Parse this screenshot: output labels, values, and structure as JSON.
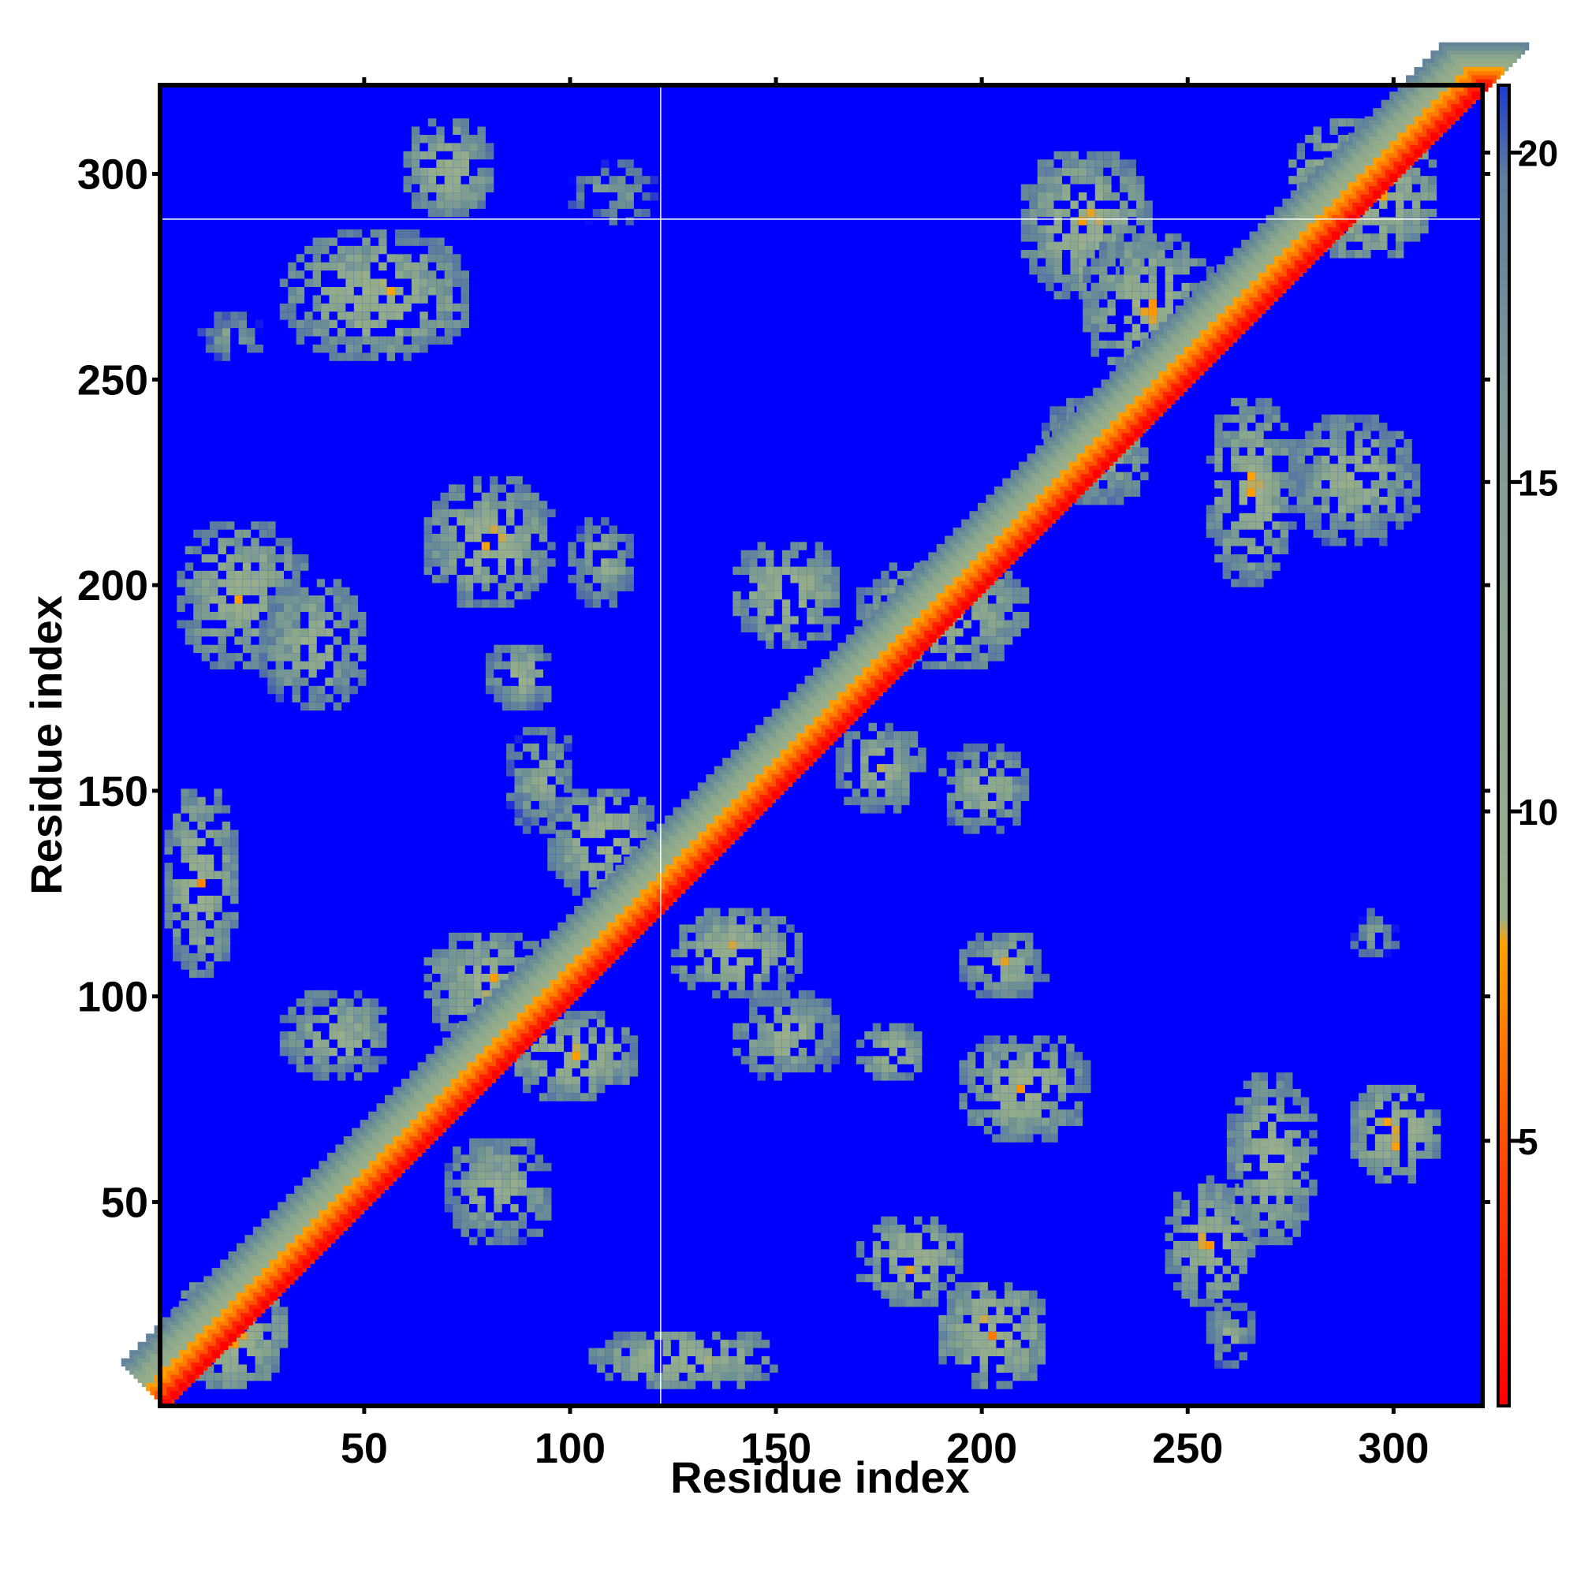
{
  "chart_data": {
    "type": "heatmap",
    "title": "",
    "xlabel": "Residue index",
    "ylabel": "Residue index",
    "xlim": [
      1,
      321
    ],
    "ylim": [
      1,
      321
    ],
    "x_ticks": [
      50,
      100,
      150,
      200,
      250,
      300
    ],
    "y_ticks": [
      50,
      100,
      150,
      200,
      250,
      300
    ],
    "colorbar": {
      "ticks": [
        5,
        10,
        15,
        20
      ],
      "range": [
        1,
        21
      ],
      "colors": [
        "#ff0000",
        "#ff8c00",
        "#9ab08a",
        "#5d7fa0",
        "#0000ff"
      ]
    },
    "background_value": 21,
    "diagonal": {
      "value": 1,
      "from": 1,
      "to": 321
    },
    "contact_regions": [
      {
        "x": [
          60,
          80
        ],
        "y": [
          290,
          312
        ],
        "min_value": 6
      },
      {
        "x": [
          30,
          75
        ],
        "y": [
          255,
          285
        ],
        "min_value": 6
      },
      {
        "x": [
          10,
          25
        ],
        "y": [
          255,
          265
        ],
        "min_value": 10
      },
      {
        "x": [
          100,
          120
        ],
        "y": [
          288,
          302
        ],
        "min_value": 10
      },
      {
        "x": [
          65,
          95
        ],
        "y": [
          195,
          225
        ],
        "min_value": 6
      },
      {
        "x": [
          100,
          115
        ],
        "y": [
          195,
          215
        ],
        "min_value": 8
      },
      {
        "x": [
          5,
          35
        ],
        "y": [
          180,
          215
        ],
        "min_value": 6
      },
      {
        "x": [
          25,
          50
        ],
        "y": [
          170,
          200
        ],
        "min_value": 7
      },
      {
        "x": [
          80,
          95
        ],
        "y": [
          170,
          185
        ],
        "min_value": 7
      },
      {
        "x": [
          85,
          100
        ],
        "y": [
          140,
          165
        ],
        "min_value": 8
      },
      {
        "x": [
          95,
          120
        ],
        "y": [
          125,
          150
        ],
        "min_value": 6
      },
      {
        "x": [
          2,
          18
        ],
        "y": [
          105,
          150
        ],
        "min_value": 6
      },
      {
        "x": [
          65,
          95
        ],
        "y": [
          90,
          115
        ],
        "min_value": 6
      },
      {
        "x": [
          30,
          55
        ],
        "y": [
          80,
          100
        ],
        "min_value": 7
      },
      {
        "x": [
          85,
          115
        ],
        "y": [
          75,
          95
        ],
        "min_value": 6
      },
      {
        "x": [
          70,
          95
        ],
        "y": [
          40,
          65
        ],
        "min_value": 7
      },
      {
        "x": [
          2,
          30
        ],
        "y": [
          5,
          30
        ],
        "min_value": 5
      },
      {
        "x": [
          105,
          150
        ],
        "y": [
          5,
          18
        ],
        "min_value": 6
      },
      {
        "x": [
          125,
          155
        ],
        "y": [
          100,
          120
        ],
        "min_value": 6
      },
      {
        "x": [
          140,
          165
        ],
        "y": [
          80,
          100
        ],
        "min_value": 7
      },
      {
        "x": [
          170,
          185
        ],
        "y": [
          80,
          92
        ],
        "min_value": 6
      },
      {
        "x": [
          195,
          215
        ],
        "y": [
          100,
          115
        ],
        "min_value": 7
      },
      {
        "x": [
          195,
          225
        ],
        "y": [
          65,
          90
        ],
        "min_value": 6
      },
      {
        "x": [
          170,
          195
        ],
        "y": [
          25,
          45
        ],
        "min_value": 6
      },
      {
        "x": [
          190,
          215
        ],
        "y": [
          5,
          30
        ],
        "min_value": 5
      },
      {
        "x": [
          140,
          165
        ],
        "y": [
          185,
          210
        ],
        "min_value": 6
      },
      {
        "x": [
          170,
          210
        ],
        "y": [
          180,
          205
        ],
        "min_value": 6
      },
      {
        "x": [
          165,
          185
        ],
        "y": [
          145,
          165
        ],
        "min_value": 7
      },
      {
        "x": [
          190,
          210
        ],
        "y": [
          140,
          160
        ],
        "min_value": 7
      },
      {
        "x": [
          210,
          240
        ],
        "y": [
          270,
          305
        ],
        "min_value": 6
      },
      {
        "x": [
          225,
          255
        ],
        "y": [
          250,
          285
        ],
        "min_value": 6
      },
      {
        "x": [
          215,
          240
        ],
        "y": [
          220,
          245
        ],
        "min_value": 7
      },
      {
        "x": [
          255,
          275
        ],
        "y": [
          200,
          245
        ],
        "min_value": 6
      },
      {
        "x": [
          275,
          305
        ],
        "y": [
          210,
          240
        ],
        "min_value": 7
      },
      {
        "x": [
          275,
          310
        ],
        "y": [
          280,
          312
        ],
        "min_value": 5
      },
      {
        "x": [
          290,
          300
        ],
        "y": [
          108,
          120
        ],
        "min_value": 10
      },
      {
        "x": [
          245,
          265
        ],
        "y": [
          25,
          55
        ],
        "min_value": 6
      },
      {
        "x": [
          260,
          280
        ],
        "y": [
          40,
          80
        ],
        "min_value": 6
      },
      {
        "x": [
          290,
          310
        ],
        "y": [
          55,
          78
        ],
        "min_value": 5
      },
      {
        "x": [
          255,
          265
        ],
        "y": [
          10,
          25
        ],
        "min_value": 8
      }
    ]
  }
}
